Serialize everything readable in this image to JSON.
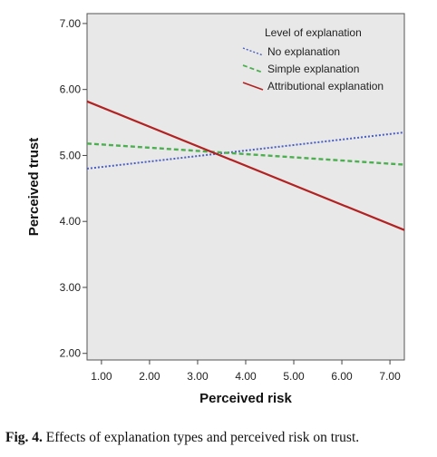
{
  "chart_data": {
    "type": "line",
    "xlabel": "Perceived risk",
    "ylabel": "Perceived trust",
    "xlim": [
      0.7,
      7.3
    ],
    "ylim": [
      1.9,
      7.15
    ],
    "xticks": [
      "1.00",
      "2.00",
      "3.00",
      "4.00",
      "5.00",
      "6.00",
      "7.00"
    ],
    "yticks": [
      "2.00",
      "3.00",
      "4.00",
      "5.00",
      "6.00",
      "7.00"
    ],
    "legend": {
      "title": "Level of explanation",
      "placement": "top-right"
    },
    "background": "#e8e8e8",
    "series": [
      {
        "name": "No explanation",
        "color": "#4a5fc1",
        "style": "dotted",
        "x": [
          0.7,
          7.3
        ],
        "y": [
          4.8,
          5.35
        ]
      },
      {
        "name": "Simple explanation",
        "color": "#4caf50",
        "style": "dashed",
        "x": [
          0.7,
          7.3
        ],
        "y": [
          5.18,
          4.86
        ]
      },
      {
        "name": "Attributional explanation",
        "color": "#b22222",
        "style": "solid",
        "x": [
          0.7,
          7.3
        ],
        "y": [
          5.82,
          3.87
        ]
      }
    ]
  },
  "caption": {
    "label": "Fig. 4.",
    "text": "Effects of explanation types and perceived risk on trust."
  }
}
